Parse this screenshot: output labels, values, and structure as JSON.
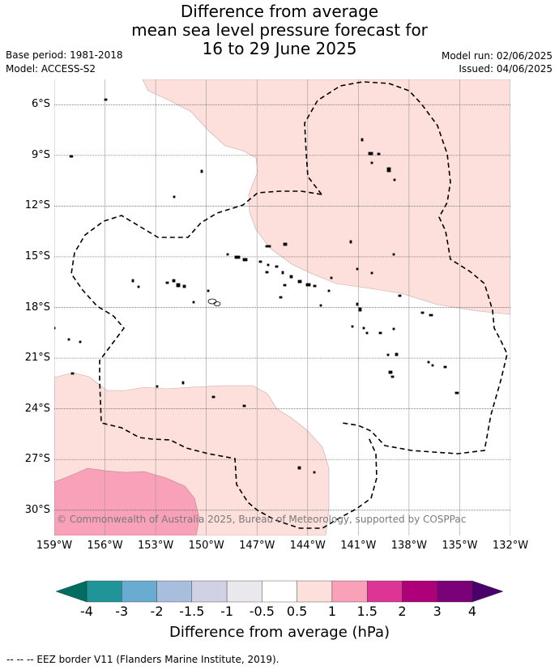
{
  "title": {
    "line1": "Difference from average",
    "line2": "mean sea level pressure forecast for",
    "line3": "16 to 29 June 2025"
  },
  "meta": {
    "base_period": "Base period: 1981-2018",
    "model": "Model: ACCESS-S2",
    "model_run": "Model run: 02/06/2025",
    "issued": "Issued: 04/06/2025"
  },
  "map": {
    "latitudes": [
      {
        "value": -6,
        "label": "6°S"
      },
      {
        "value": -9,
        "label": "9°S"
      },
      {
        "value": -12,
        "label": "12°S"
      },
      {
        "value": -15,
        "label": "15°S"
      },
      {
        "value": -18,
        "label": "18°S"
      },
      {
        "value": -21,
        "label": "21°S"
      },
      {
        "value": -24,
        "label": "24°S"
      },
      {
        "value": -27,
        "label": "27°S"
      },
      {
        "value": -30,
        "label": "30°S"
      }
    ],
    "longitudes": [
      {
        "value": -159,
        "label": "159°W"
      },
      {
        "value": -156,
        "label": "156°W"
      },
      {
        "value": -153,
        "label": "153°W"
      },
      {
        "value": -150,
        "label": "150°W"
      },
      {
        "value": -147,
        "label": "147°W"
      },
      {
        "value": -144,
        "label": "144°W"
      },
      {
        "value": -141,
        "label": "141°W"
      },
      {
        "value": -138,
        "label": "138°W"
      },
      {
        "value": -135,
        "label": "135°W"
      },
      {
        "value": -132,
        "label": "132°W"
      }
    ],
    "lon_range": [
      -159,
      -132
    ],
    "lat_range": [
      -31.5,
      -4.5
    ],
    "colors": {
      "anomaly_0_5_to_1": "#fddfdc",
      "anomaly_1_to_1_5": "#f9a1b8",
      "grid": "#9a9a9a",
      "eez_line": "#000000",
      "land": "#000000"
    },
    "copyright": "© Commonwealth of Australia 2025, Bureau of Meteorology, supported by COSPPac"
  },
  "colorbar": {
    "title": "Difference from average (hPa)",
    "labels": [
      "-4",
      "-3",
      "-2",
      "-1.5",
      "-1",
      "-0.5",
      "0.5",
      "1",
      "1.5",
      "2",
      "3",
      "4"
    ],
    "colors": [
      "#1f9499",
      "#6aabd1",
      "#a8bedd",
      "#d1d1e6",
      "#eae8ed",
      "#ffffff",
      "#fddfdc",
      "#f9a1b8",
      "#dd3596",
      "#ad0079",
      "#7a0177"
    ],
    "under_color": "#006d62",
    "over_color": "#49006a"
  },
  "footnote": "--  --  -- EEZ border V11 (Flanders Marine Institute, 2019)."
}
